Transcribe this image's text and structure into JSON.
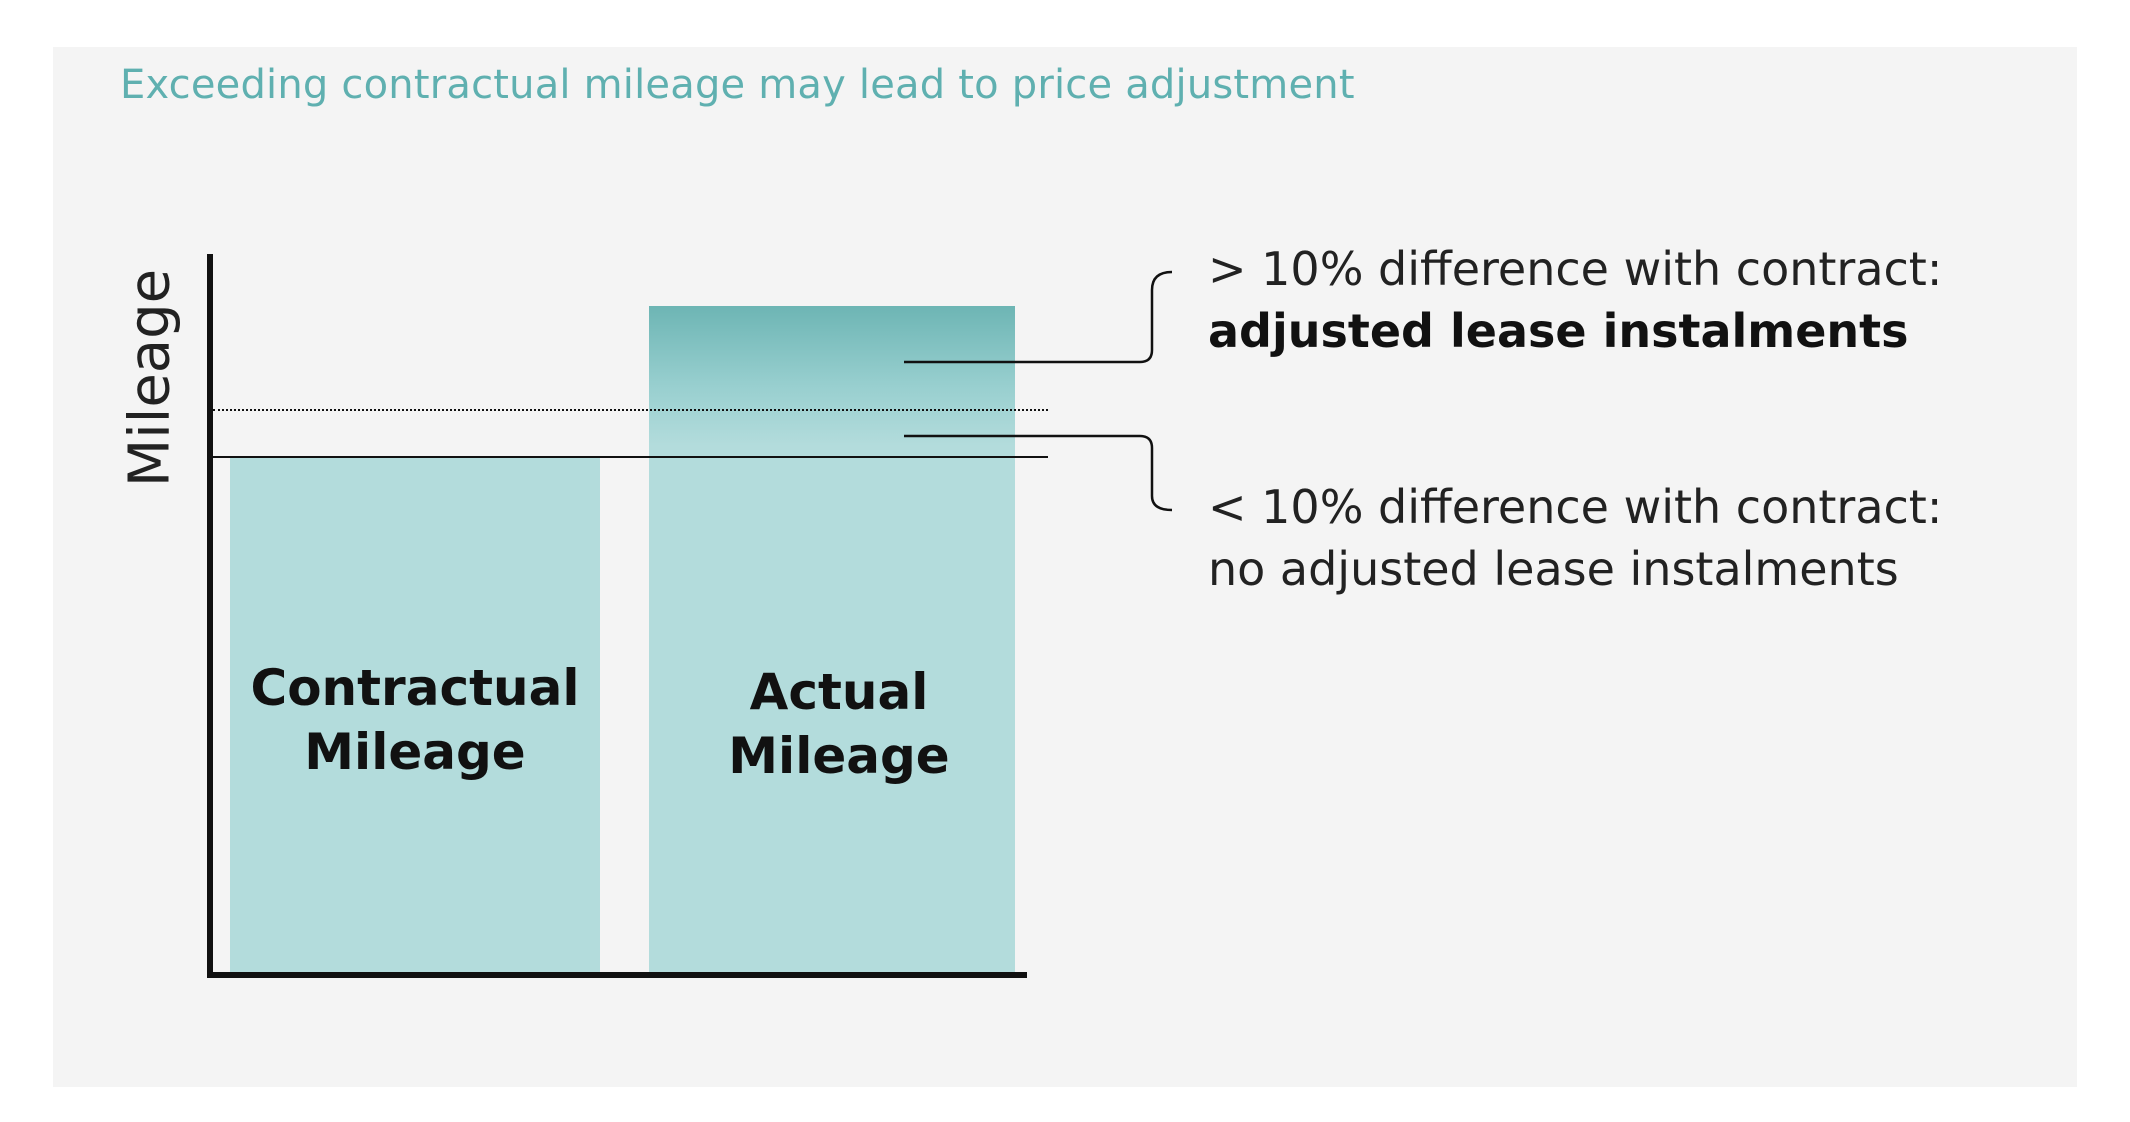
{
  "headline": "Exceeding contractual mileage may lead to price adjustment",
  "y_axis_label": "Mileage",
  "colors": {
    "headline": "#5fb0b0",
    "bar_fill": "#b3dcdc",
    "bar_excess_fill": "#6db5b4",
    "panel_background": "#f4f4f4",
    "axis": "#111111"
  },
  "bars": {
    "contractual": "Contractual\nMileage",
    "actual": "Actual\nMileage"
  },
  "annotations": {
    "above_threshold": {
      "condition": "> 10% difference with contract:",
      "outcome": "adjusted lease instalments"
    },
    "below_threshold": {
      "condition": "< 10% difference with contract:",
      "outcome": "no adjusted lease instalments"
    }
  },
  "reference_lines": {
    "contractual_level": "solid",
    "threshold_level": "dotted"
  }
}
